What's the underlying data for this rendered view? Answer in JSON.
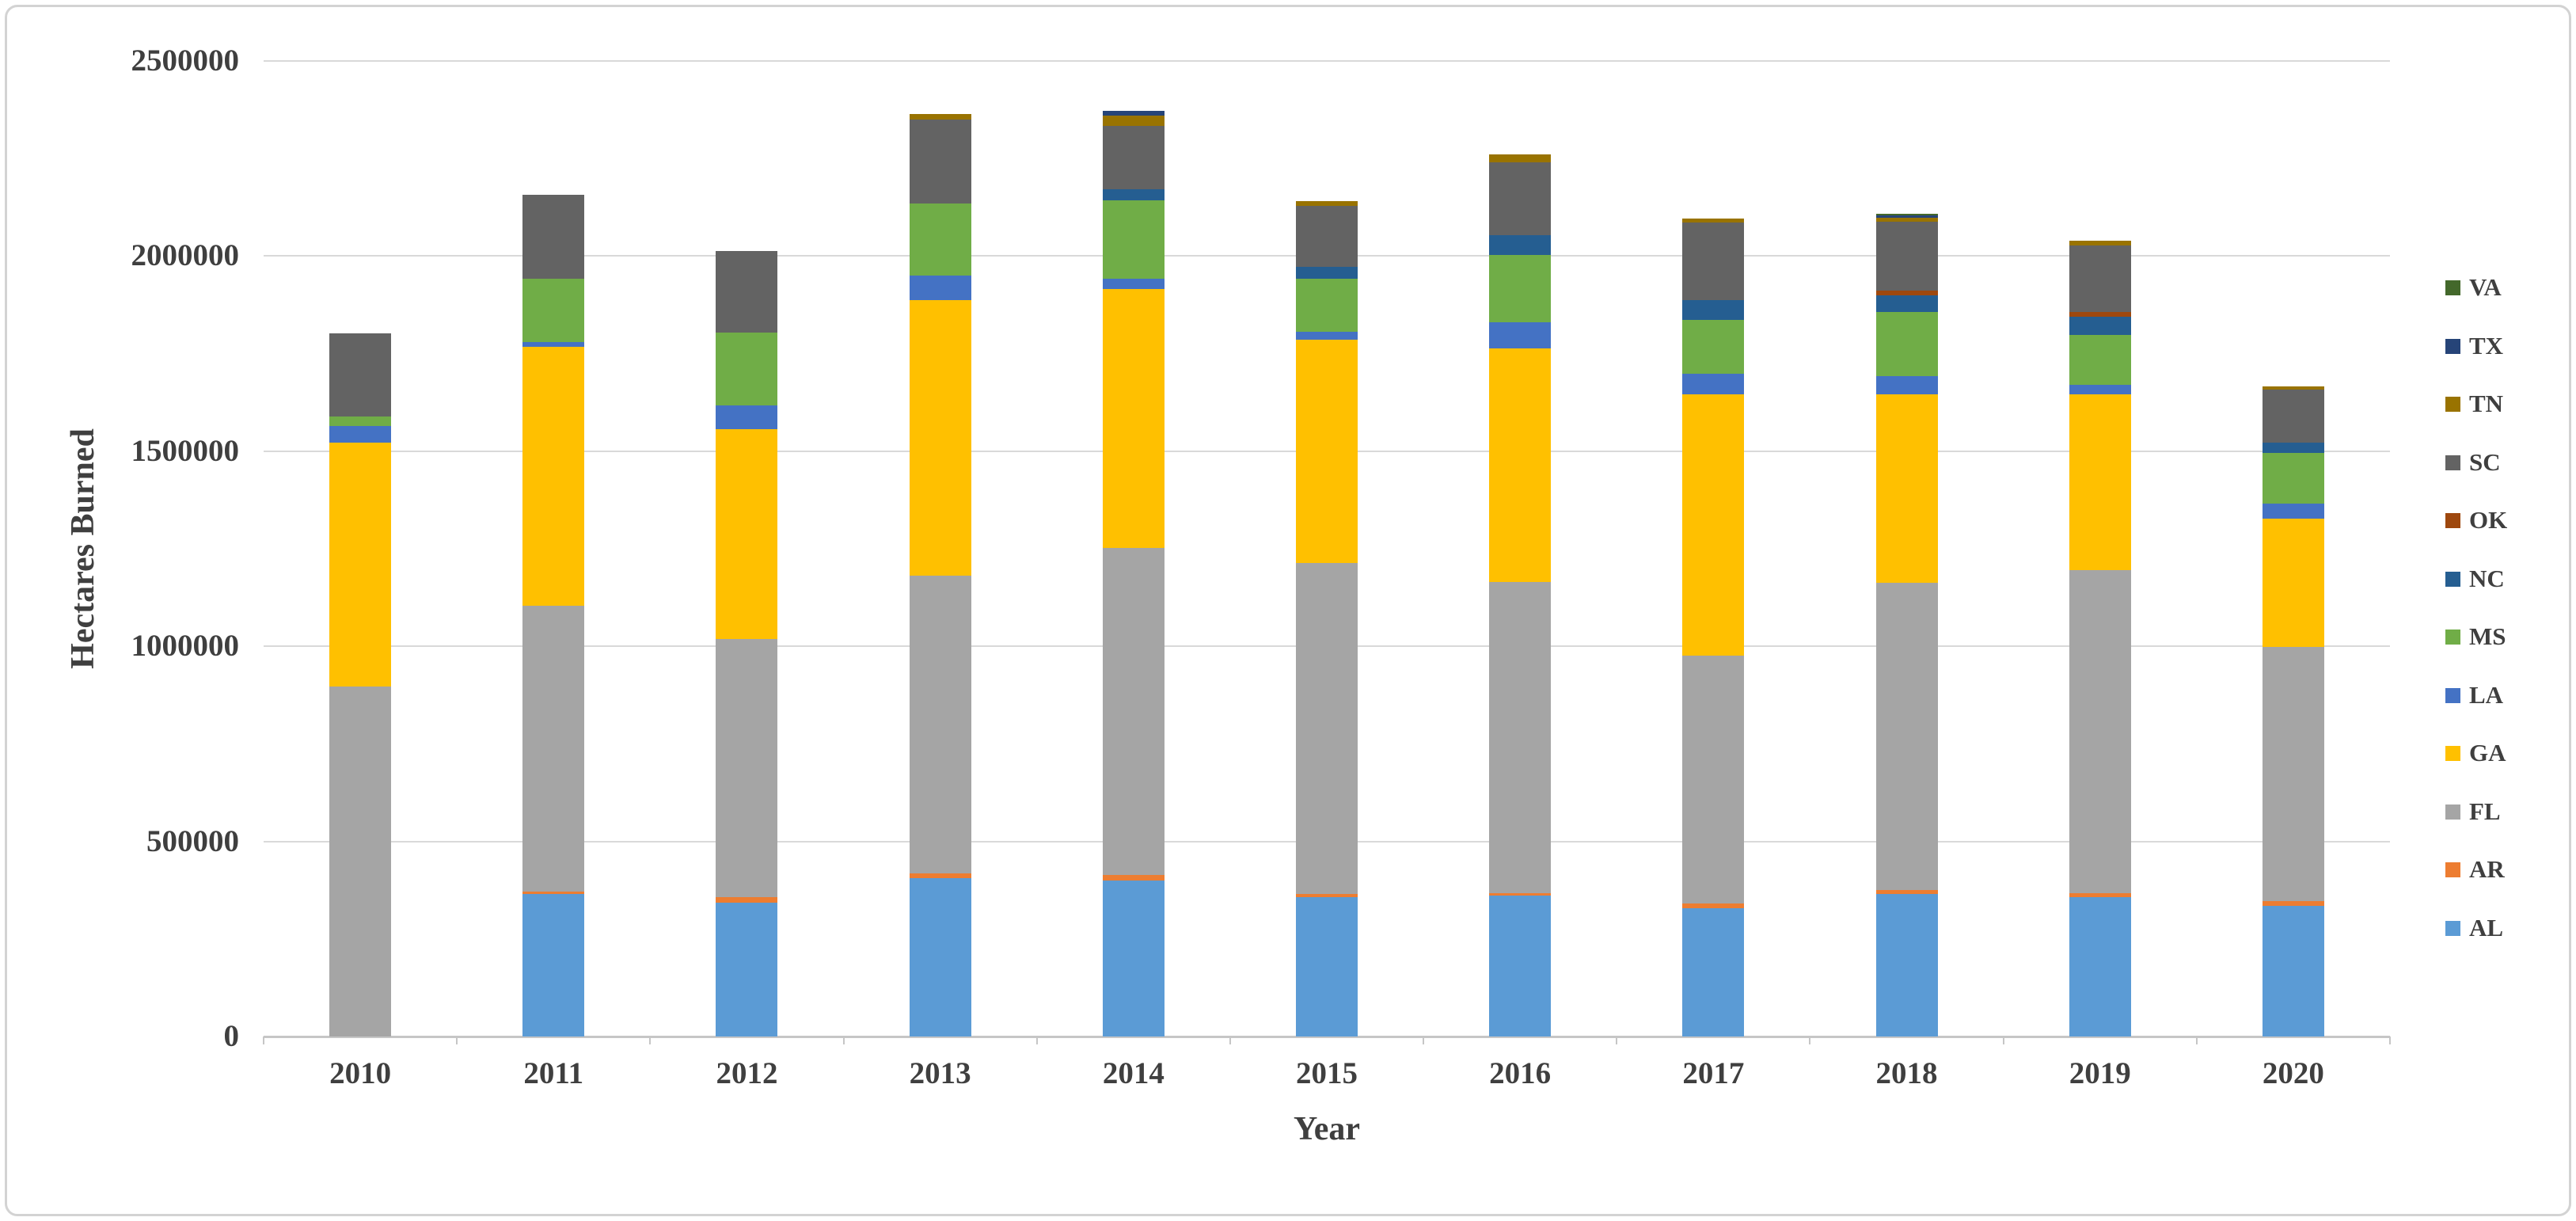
{
  "chart_data": {
    "type": "bar",
    "stacked": true,
    "xlabel": "Year",
    "ylabel": "Hectares Burned",
    "units": "hectares",
    "ylim": [
      0,
      2500000
    ],
    "ytick_step": 500000,
    "ytick_labels": [
      "0",
      "500000",
      "1000000",
      "1500000",
      "2000000",
      "2500000"
    ],
    "grid": true,
    "legend_position": "right",
    "legend_order_top_to_bottom": [
      "VA",
      "TX",
      "TN",
      "SC",
      "OK",
      "NC",
      "MS",
      "LA",
      "GA",
      "FL",
      "AR",
      "AL"
    ],
    "categories": [
      "2010",
      "2011",
      "2012",
      "2013",
      "2014",
      "2015",
      "2016",
      "2017",
      "2018",
      "2019",
      "2020"
    ],
    "series": [
      {
        "name": "AL",
        "color": "#5B9BD5",
        "values": [
          0,
          366000,
          343000,
          405000,
          400000,
          357000,
          362000,
          329000,
          366000,
          357000,
          335000
        ]
      },
      {
        "name": "AR",
        "color": "#ED7D31",
        "values": [
          0,
          5000,
          14000,
          14000,
          14000,
          8000,
          5000,
          12000,
          10000,
          10000,
          12000
        ]
      },
      {
        "name": "FL",
        "color": "#A5A5A5",
        "values": [
          896000,
          732000,
          662000,
          761000,
          839000,
          849000,
          797000,
          636000,
          786000,
          829000,
          652000
        ]
      },
      {
        "name": "GA",
        "color": "#FFC000",
        "values": [
          625000,
          664000,
          538000,
          707000,
          662000,
          571000,
          599000,
          668000,
          483000,
          449000,
          329000
        ]
      },
      {
        "name": "LA",
        "color": "#4472C4",
        "values": [
          43000,
          12000,
          61000,
          63000,
          26000,
          20000,
          67000,
          53000,
          47000,
          26000,
          37000
        ]
      },
      {
        "name": "MS",
        "color": "#70AD47",
        "values": [
          24000,
          162000,
          185000,
          185000,
          201000,
          136000,
          173000,
          138000,
          165000,
          126000,
          130000
        ]
      },
      {
        "name": "NC",
        "color": "#255E91",
        "values": [
          0,
          0,
          0,
          0,
          30000,
          32000,
          51000,
          51000,
          43000,
          47000,
          26000
        ]
      },
      {
        "name": "OK",
        "color": "#9E480E",
        "values": [
          0,
          0,
          0,
          0,
          0,
          0,
          0,
          0,
          12000,
          12000,
          0
        ]
      },
      {
        "name": "SC",
        "color": "#636363",
        "values": [
          213000,
          217000,
          211000,
          215000,
          162000,
          156000,
          187000,
          199000,
          177000,
          171000,
          136000
        ]
      },
      {
        "name": "TN",
        "color": "#997300",
        "values": [
          0,
          0,
          0,
          14000,
          26000,
          12000,
          20000,
          10000,
          10000,
          12000,
          10000
        ]
      },
      {
        "name": "TX",
        "color": "#264478",
        "values": [
          0,
          0,
          0,
          0,
          12000,
          0,
          0,
          0,
          5000,
          0,
          0
        ]
      },
      {
        "name": "VA",
        "color": "#43682B",
        "values": [
          0,
          0,
          0,
          0,
          0,
          0,
          0,
          0,
          4000,
          0,
          0
        ]
      }
    ],
    "colors": {
      "background": "#FFFFFF",
      "frame_border": "#D3D3D3",
      "gridline": "#D9D9D9",
      "axis_line": "#C6C6C6",
      "axis_text": "#3F3F3F"
    }
  }
}
